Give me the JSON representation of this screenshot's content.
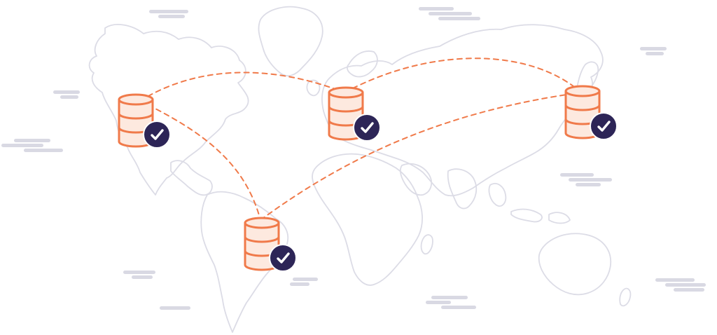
{
  "colors": {
    "background": "#ffffff",
    "map_outline": "#dcdce6",
    "cloud": "#d9d9e3",
    "route": "#f07a4a",
    "database_stroke": "#f07a4a",
    "database_fill": "#fde9df",
    "badge": "#2d2557",
    "check": "#ffffff"
  },
  "icons": {
    "database": "database-icon",
    "badge": "checkmark-badge-icon",
    "cloud": "cloud-icon",
    "map": "world-map-outline"
  },
  "nodes": [
    {
      "id": "north-america",
      "status": "verified"
    },
    {
      "id": "europe",
      "status": "verified"
    },
    {
      "id": "east-asia",
      "status": "verified"
    },
    {
      "id": "south-america",
      "status": "verified"
    }
  ],
  "routes": [
    {
      "from": "north-america",
      "to": "europe"
    },
    {
      "from": "north-america",
      "to": "south-america"
    },
    {
      "from": "europe",
      "to": "east-asia"
    },
    {
      "from": "south-america",
      "to": "east-asia"
    }
  ]
}
